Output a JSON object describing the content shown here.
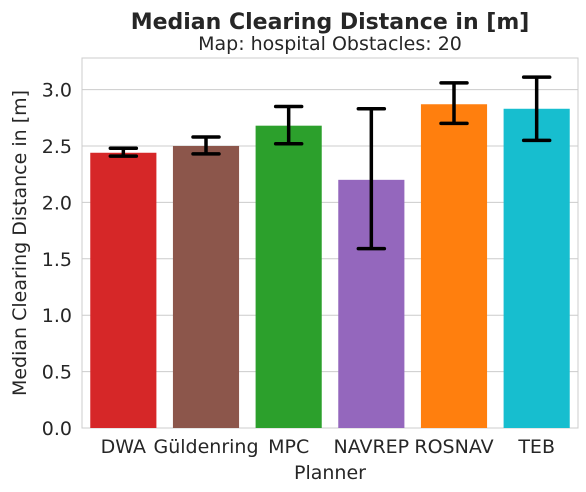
{
  "chart_data": {
    "type": "bar",
    "title": "Median Clearing Distance in [m]",
    "subtitle": "Map: hospital Obstacles: 20",
    "xlabel": "Planner",
    "ylabel": "Median Clearing Distance in [m]",
    "categories": [
      "DWA",
      "Güldenring",
      "MPC",
      "NAVREP",
      "ROSNAV",
      "TEB"
    ],
    "values": [
      2.44,
      2.5,
      2.68,
      2.2,
      2.87,
      2.83
    ],
    "error_low": [
      2.41,
      2.43,
      2.52,
      1.59,
      2.7,
      2.55
    ],
    "error_high": [
      2.48,
      2.58,
      2.85,
      2.83,
      3.06,
      3.11
    ],
    "colors": [
      "#d62728",
      "#8c564b",
      "#2ca02c",
      "#9467bd",
      "#ff7f0e",
      "#17becf"
    ],
    "ylim": [
      0,
      3.28
    ],
    "yticks": [
      "0.0",
      "0.5",
      "1.0",
      "1.5",
      "2.0",
      "2.5",
      "3.0"
    ],
    "grid": true
  }
}
